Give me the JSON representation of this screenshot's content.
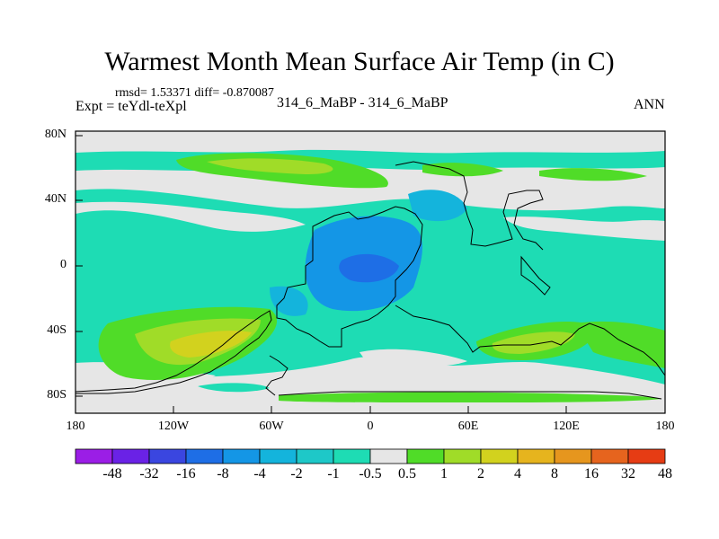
{
  "title": "Warmest Month Mean Surface Air Temp (in C)",
  "stats": "rmsd= 1.53371 diff= -0.870087",
  "expt": "Expt = teYdl-teXpl",
  "center_label": "314_6_MaBP - 314_6_MaBP",
  "season": "ANN",
  "map": {
    "lat_ticks": [
      "80N",
      "40N",
      "0",
      "40S",
      "80S"
    ],
    "lon_ticks": [
      "180",
      "120W",
      "60W",
      "0",
      "60E",
      "120E",
      "180"
    ],
    "background_color": "#e6e6e6"
  },
  "colorbar": {
    "labels": [
      "-48",
      "-32",
      "-16",
      "-8",
      "-4",
      "-2",
      "-1",
      "-0.5",
      "0.5",
      "1",
      "2",
      "4",
      "8",
      "16",
      "32",
      "48"
    ],
    "colors": [
      "#9b1ee6",
      "#6a22e6",
      "#3a46e0",
      "#1e6ee6",
      "#1496e6",
      "#14b4dc",
      "#1ec8c8",
      "#1edcb4",
      "#e6e6e6",
      "#50dc28",
      "#a0dc28",
      "#d2d21e",
      "#e6b41e",
      "#e6961e",
      "#e6641e",
      "#e63c14"
    ]
  }
}
